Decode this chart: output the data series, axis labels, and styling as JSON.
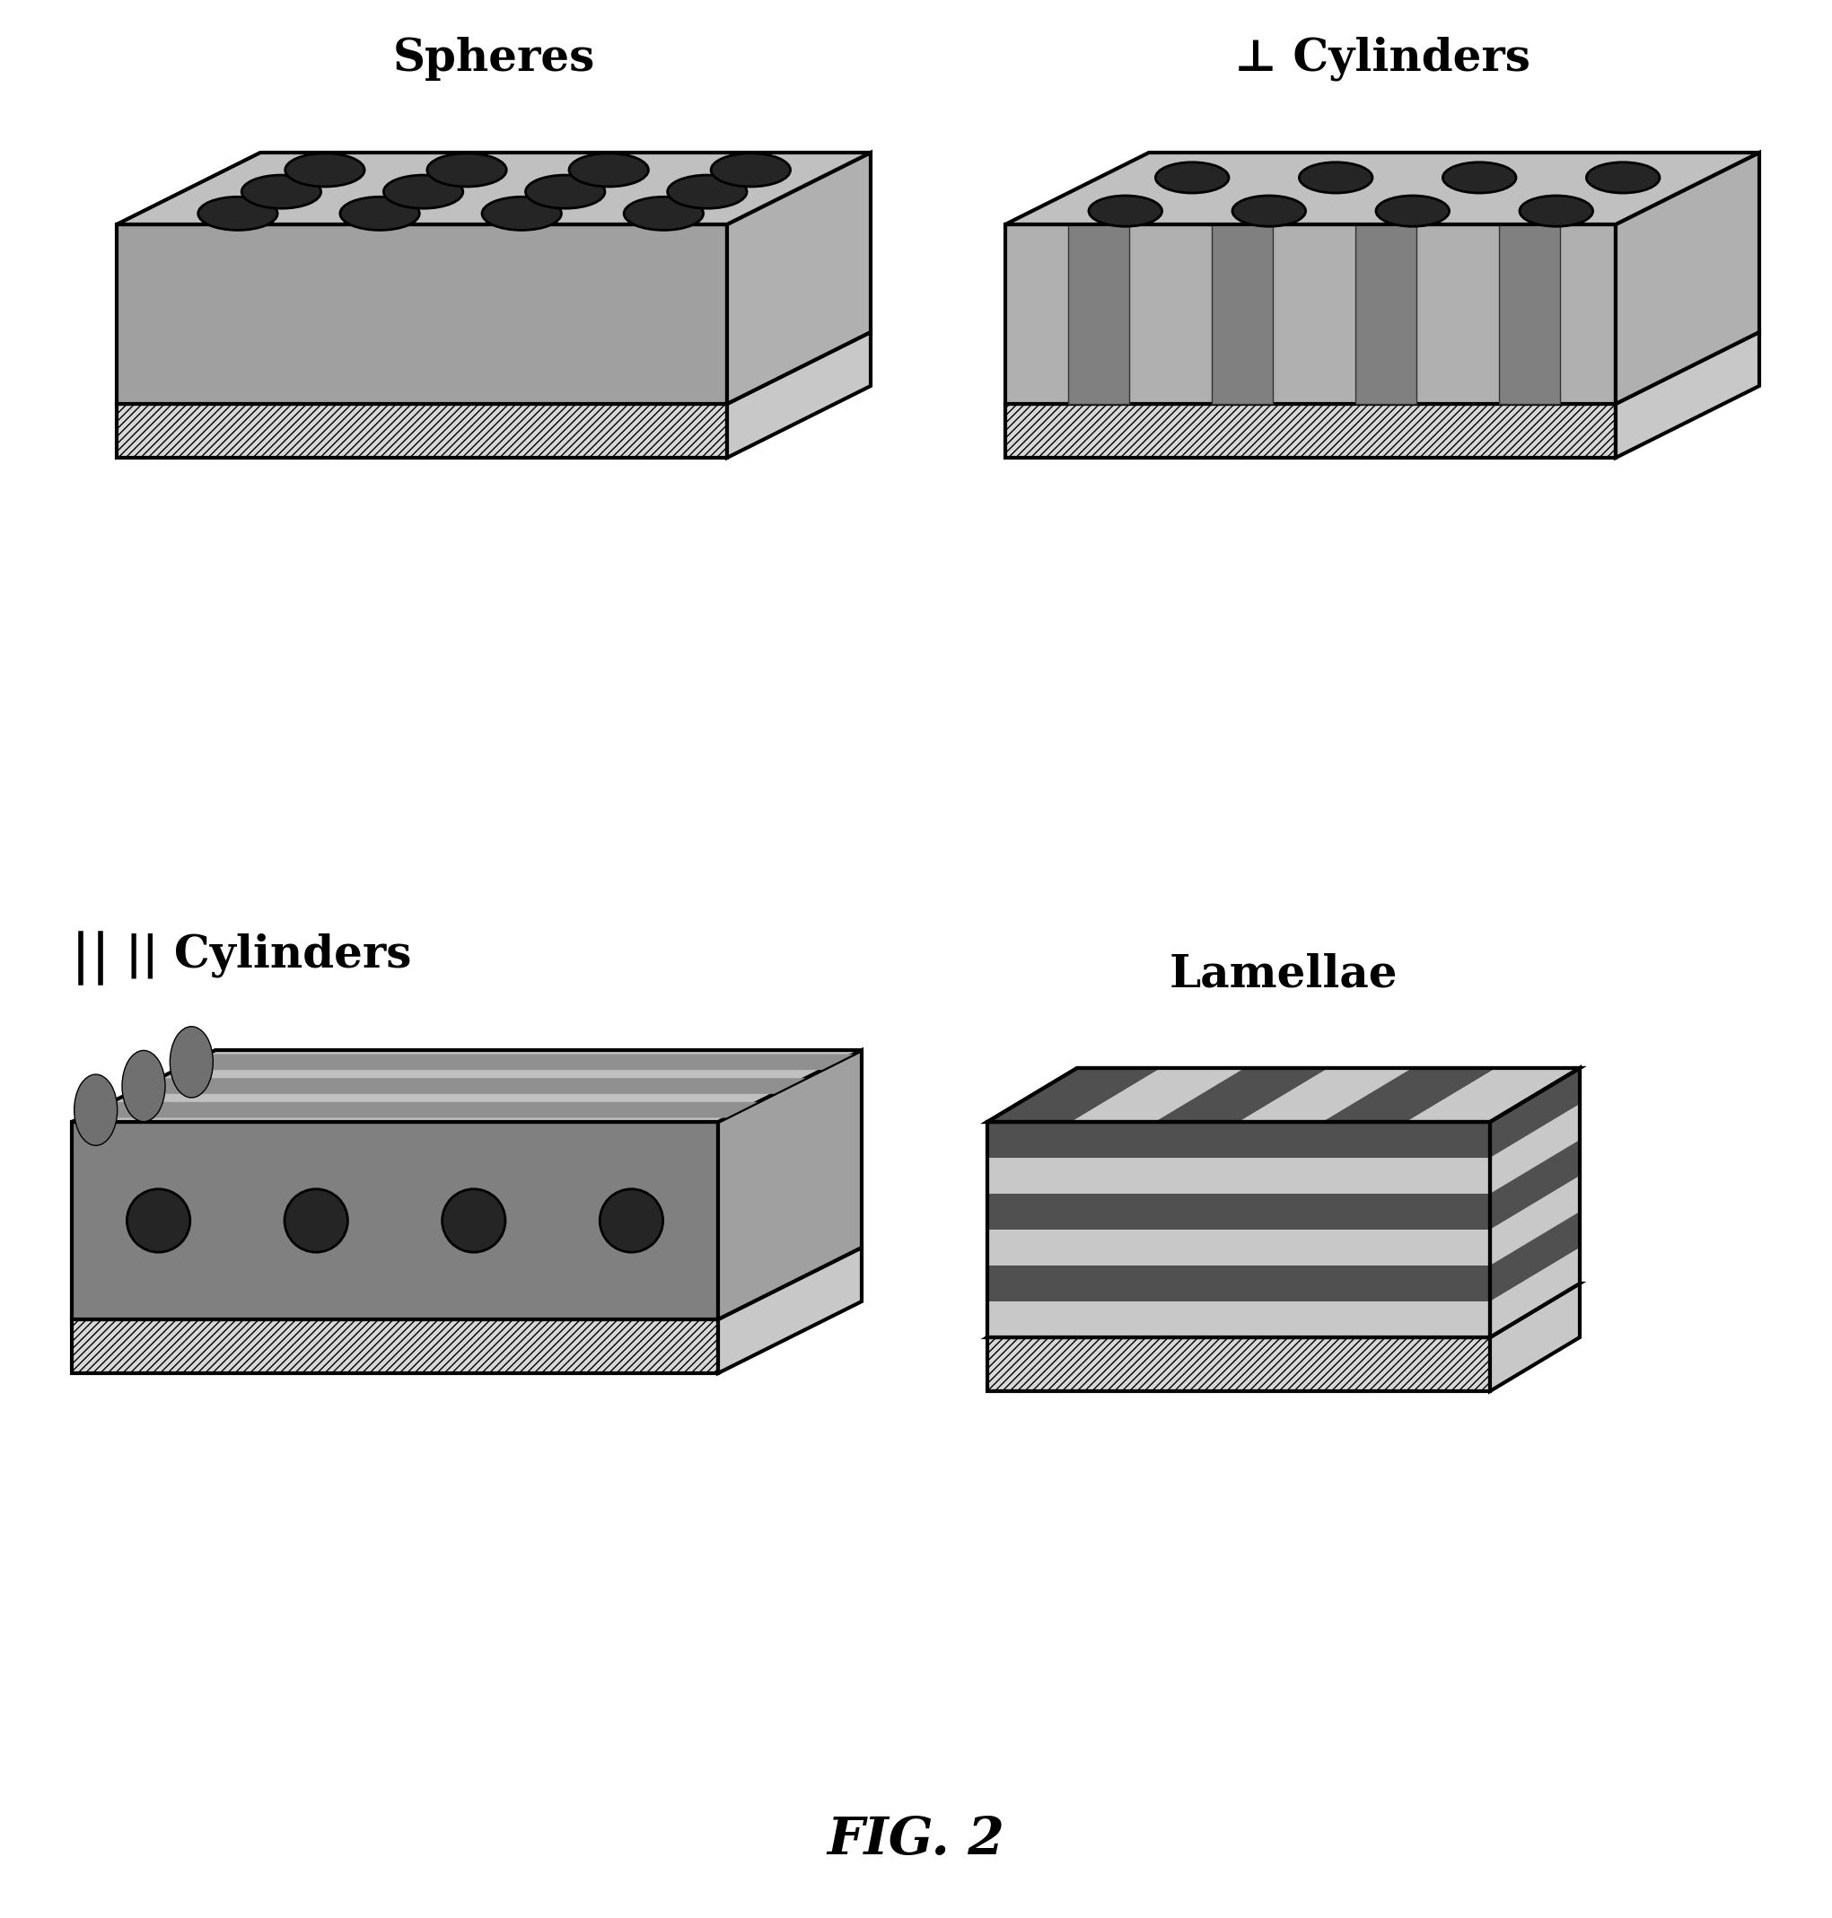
{
  "background_color": "#ffffff",
  "label_fontsize": 36,
  "fig_label": "FIG. 2",
  "panel_labels": [
    "Spheres",
    "⊥ Cylinders",
    "|| Cylinders",
    "Lamellae"
  ],
  "colors": {
    "top_face": "#c0c0c0",
    "front_face": "#a0a0a0",
    "right_face": "#b0b0b0",
    "hatch_face": "#d8d8d8",
    "sphere": "#252525",
    "cylinder_col": "#808080",
    "cylinder_band": "#909090",
    "lamella_dark": "#505050",
    "lamella_light": "#c8c8c8",
    "edge": "#000000",
    "perp_cyl_body": "#aaaaaa"
  }
}
